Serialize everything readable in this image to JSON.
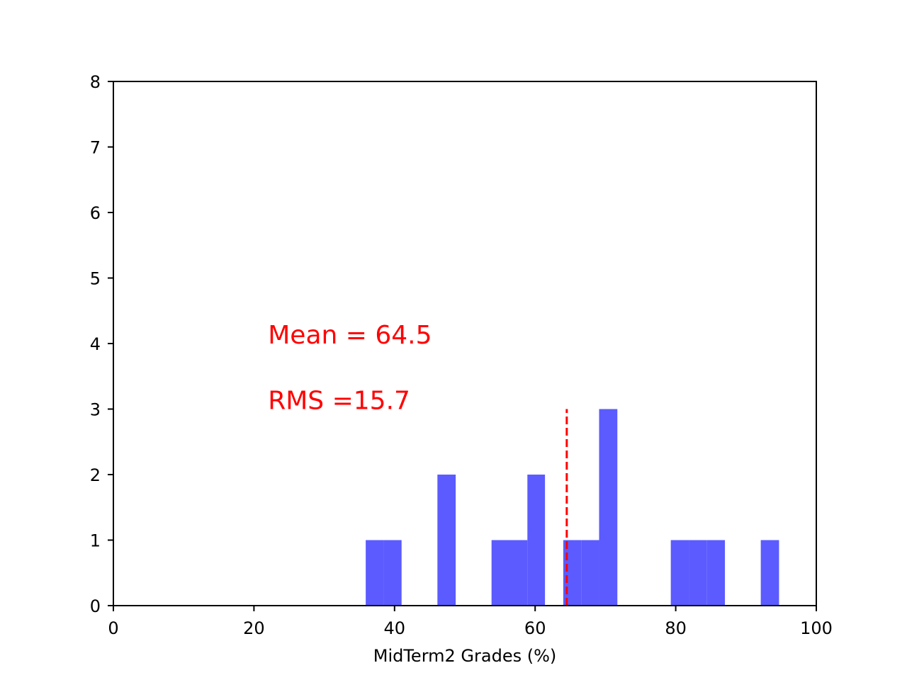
{
  "chart_data": {
    "type": "bar",
    "title": "",
    "xlabel": "MidTerm2 Grades (%)",
    "ylabel": "",
    "xlim": [
      0,
      100
    ],
    "ylim": [
      0,
      8
    ],
    "x_ticks": [
      0,
      20,
      40,
      60,
      80,
      100
    ],
    "y_ticks": [
      0,
      1,
      2,
      3,
      4,
      5,
      6,
      7,
      8
    ],
    "grid": false,
    "bar_color": "#5b5bff",
    "bins": [
      {
        "start": 35.9,
        "end": 38.5,
        "count": 1
      },
      {
        "start": 38.5,
        "end": 41.0,
        "count": 1
      },
      {
        "start": 46.1,
        "end": 48.7,
        "count": 2
      },
      {
        "start": 53.8,
        "end": 56.3,
        "count": 1
      },
      {
        "start": 56.3,
        "end": 58.9,
        "count": 1
      },
      {
        "start": 58.9,
        "end": 61.4,
        "count": 2
      },
      {
        "start": 64.0,
        "end": 66.6,
        "count": 1
      },
      {
        "start": 66.6,
        "end": 69.1,
        "count": 1
      },
      {
        "start": 69.1,
        "end": 71.7,
        "count": 3
      },
      {
        "start": 79.3,
        "end": 81.9,
        "count": 1
      },
      {
        "start": 81.9,
        "end": 84.4,
        "count": 1
      },
      {
        "start": 84.4,
        "end": 87.0,
        "count": 1
      },
      {
        "start": 92.1,
        "end": 94.7,
        "count": 1
      }
    ],
    "mean_line": {
      "x": 64.5,
      "y_top": 3,
      "color": "#ff0000",
      "style": "dashed"
    },
    "annotations": [
      {
        "text": "Mean = 64.5",
        "x": 22,
        "y": 4,
        "color": "#ff0000"
      },
      {
        "text": "RMS =15.7",
        "x": 22,
        "y": 3,
        "color": "#ff0000"
      }
    ]
  }
}
